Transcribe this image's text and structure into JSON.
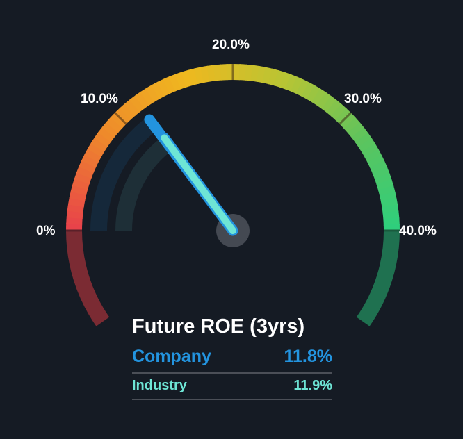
{
  "chart_data": {
    "type": "gauge",
    "title": "Future ROE (3yrs)",
    "range": [
      0,
      40
    ],
    "ticks": [
      {
        "value": 0,
        "label": "0%"
      },
      {
        "value": 10,
        "label": "10.0%"
      },
      {
        "value": 20,
        "label": "20.0%"
      },
      {
        "value": 30,
        "label": "30.0%"
      },
      {
        "value": 40,
        "label": "40.0%"
      }
    ],
    "series": [
      {
        "name": "Company",
        "value": 11.8,
        "display": "11.8%",
        "color": "#2394df"
      },
      {
        "name": "Industry",
        "value": 11.9,
        "display": "11.9%",
        "color": "#6ee5d5"
      }
    ],
    "gradient_colors": [
      "#e8434a",
      "#ee8a2b",
      "#efb81f",
      "#b8c534",
      "#5cc45e",
      "#2ccf7e"
    ]
  },
  "legend": {
    "title": "Future ROE (3yrs)",
    "company": {
      "label": "Company",
      "value": "11.8%"
    },
    "industry": {
      "label": "Industry",
      "value": "11.9%"
    }
  },
  "labels": {
    "t0": "0%",
    "t10": "10.0%",
    "t20": "20.0%",
    "t30": "30.0%",
    "t40": "40.0%"
  }
}
